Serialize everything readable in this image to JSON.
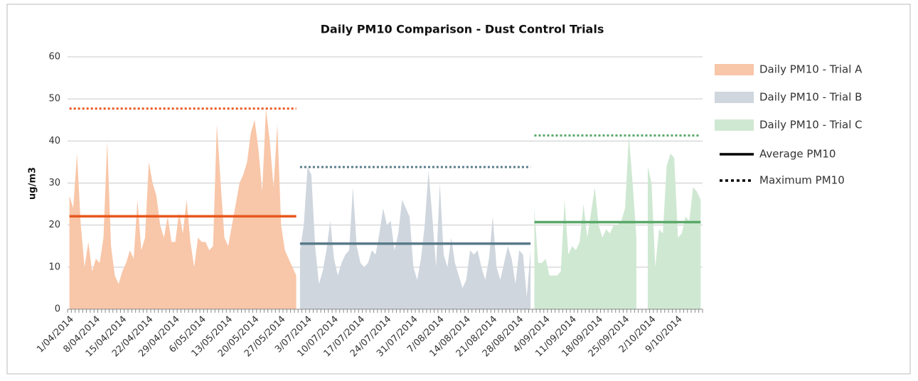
{
  "chart_data": {
    "type": "area",
    "title": "Daily PM10 Comparison - Dust Control Trials",
    "y_label": "ug/m3",
    "categories": [
      "1/04/2014",
      null,
      null,
      null,
      null,
      null,
      null,
      "8/04/2014",
      null,
      null,
      null,
      null,
      null,
      null,
      "15/04/2014",
      null,
      null,
      null,
      null,
      null,
      null,
      "22/04/2014",
      null,
      null,
      null,
      null,
      null,
      null,
      "29/04/2014",
      null,
      null,
      null,
      null,
      null,
      null,
      "6/05/2014",
      null,
      null,
      null,
      null,
      null,
      null,
      "13/05/2014",
      null,
      null,
      null,
      null,
      null,
      null,
      "20/05/2014",
      null,
      null,
      null,
      null,
      null,
      null,
      "27/05/2014",
      null,
      null,
      null,
      null,
      null,
      null,
      "3/07/2014",
      null,
      null,
      null,
      null,
      null,
      null,
      "10/07/2014",
      null,
      null,
      null,
      null,
      null,
      null,
      "17/07/2014",
      null,
      null,
      null,
      null,
      null,
      null,
      "24/07/2014",
      null,
      null,
      null,
      null,
      null,
      null,
      "31/07/2014",
      null,
      null,
      null,
      null,
      null,
      null,
      "7/08/2014",
      null,
      null,
      null,
      null,
      null,
      null,
      "14/08/2014",
      null,
      null,
      null,
      null,
      null,
      null,
      "21/08/2014",
      null,
      null,
      null,
      null,
      null,
      null,
      "28/08/2014",
      null,
      null,
      null,
      null,
      null,
      null,
      "4/09/2014",
      null,
      null,
      null,
      null,
      null,
      null,
      "11/09/2014",
      null,
      null,
      null,
      null,
      null,
      null,
      "18/09/2014",
      null,
      null,
      null,
      null,
      null,
      null,
      "25/09/2014",
      null,
      null,
      null,
      null,
      null,
      null,
      "2/10/2014",
      null,
      null,
      null,
      null,
      null,
      null,
      "9/10/2014",
      null,
      null,
      null,
      null,
      null,
      null
    ],
    "series": [
      {
        "name": "Daily PM10 - Trial A",
        "color": "#f8c6a8",
        "line_color": "#e8581e",
        "average": 22.1,
        "maximum": 47.7,
        "values": [
          27,
          24,
          37,
          20,
          10,
          16,
          9,
          12,
          11,
          17,
          40,
          15,
          8,
          6,
          9,
          11,
          14,
          12,
          26,
          14,
          17,
          35,
          30,
          27,
          20,
          17,
          22,
          16,
          16,
          23,
          18,
          26,
          16,
          10,
          17,
          16,
          16,
          14,
          15,
          44,
          30,
          17,
          15,
          20,
          25,
          30,
          32,
          35,
          42,
          45,
          38,
          28,
          47.7,
          40,
          29,
          44,
          20,
          14,
          12,
          10,
          8,
          null,
          null,
          null,
          null,
          null,
          null,
          null,
          null,
          null,
          null,
          null,
          null,
          null,
          null,
          null,
          null,
          null,
          null,
          null,
          null,
          null,
          null,
          null,
          null,
          null,
          null,
          null,
          null,
          null,
          null,
          null,
          null,
          null,
          null,
          null,
          null,
          null,
          null,
          null,
          null,
          null,
          null,
          null,
          null,
          null,
          null,
          null,
          null,
          null,
          null,
          null,
          null,
          null,
          null,
          null,
          null,
          null,
          null,
          null,
          null,
          null,
          null,
          null,
          null,
          null,
          null,
          null,
          null,
          null,
          null,
          null,
          null,
          null,
          null,
          null,
          null,
          null,
          null,
          null,
          null,
          null,
          null,
          null,
          null,
          null,
          null,
          null,
          null,
          null,
          null,
          null,
          null,
          null,
          null,
          null,
          null,
          null,
          null,
          null,
          null,
          null,
          null,
          null,
          null,
          null,
          null,
          null
        ]
      },
      {
        "name": "Daily PM10 - Trial B",
        "color": "#cfd6de",
        "line_color": "#5a7b8a",
        "average": 15.6,
        "maximum": 33.8,
        "values": [
          null,
          null,
          null,
          null,
          null,
          null,
          null,
          null,
          null,
          null,
          null,
          null,
          null,
          null,
          null,
          null,
          null,
          null,
          null,
          null,
          null,
          null,
          null,
          null,
          null,
          null,
          null,
          null,
          null,
          null,
          null,
          null,
          null,
          null,
          null,
          null,
          null,
          null,
          null,
          null,
          null,
          null,
          null,
          null,
          null,
          null,
          null,
          null,
          null,
          null,
          null,
          null,
          null,
          null,
          null,
          null,
          null,
          null,
          null,
          null,
          null,
          14,
          20,
          33.8,
          32,
          15,
          6,
          9,
          14,
          21,
          12,
          8,
          11,
          13,
          14,
          29,
          15,
          11,
          10,
          11,
          14,
          13,
          18,
          24,
          20,
          21,
          14,
          18,
          26,
          24,
          22,
          10,
          7,
          12,
          20,
          33,
          22,
          10,
          30,
          13,
          10,
          17,
          11,
          8,
          5,
          7,
          14,
          13,
          14,
          10,
          7,
          12,
          22,
          10,
          7,
          11,
          15,
          12,
          6,
          14,
          13,
          3,
          14,
          null,
          null,
          null,
          null,
          null,
          null,
          null,
          null,
          null,
          null,
          null,
          null,
          null,
          null,
          null,
          null,
          null,
          null,
          null,
          null,
          null,
          null,
          null,
          null,
          null,
          null,
          null,
          null,
          null,
          null,
          null,
          null,
          null,
          null,
          null,
          null,
          null,
          null,
          null,
          null,
          null,
          null,
          null,
          null,
          null
        ]
      },
      {
        "name": "Daily PM10 - Trial C",
        "color": "#cfe8d2",
        "line_color": "#5aa86a",
        "average": 20.7,
        "maximum": 41.3,
        "values": [
          null,
          null,
          null,
          null,
          null,
          null,
          null,
          null,
          null,
          null,
          null,
          null,
          null,
          null,
          null,
          null,
          null,
          null,
          null,
          null,
          null,
          null,
          null,
          null,
          null,
          null,
          null,
          null,
          null,
          null,
          null,
          null,
          null,
          null,
          null,
          null,
          null,
          null,
          null,
          null,
          null,
          null,
          null,
          null,
          null,
          null,
          null,
          null,
          null,
          null,
          null,
          null,
          null,
          null,
          null,
          null,
          null,
          null,
          null,
          null,
          null,
          null,
          null,
          null,
          null,
          null,
          null,
          null,
          null,
          null,
          null,
          null,
          null,
          null,
          null,
          null,
          null,
          null,
          null,
          null,
          null,
          null,
          null,
          null,
          null,
          null,
          null,
          null,
          null,
          null,
          null,
          null,
          null,
          null,
          null,
          null,
          null,
          null,
          null,
          null,
          null,
          null,
          null,
          null,
          null,
          null,
          null,
          null,
          null,
          null,
          null,
          null,
          null,
          null,
          null,
          null,
          null,
          null,
          null,
          null,
          null,
          null,
          null,
          24,
          11,
          11,
          12,
          8,
          8,
          8,
          9,
          26,
          13,
          15,
          14,
          16,
          25,
          17,
          23,
          29,
          20,
          17,
          19,
          18,
          20,
          20,
          21,
          24,
          41.3,
          30,
          17,
          null,
          null,
          34,
          30,
          10,
          19,
          18,
          34,
          37,
          36,
          17,
          18,
          22,
          21,
          29,
          28,
          26
        ]
      }
    ],
    "legend_lines": [
      {
        "name": "Average PM10",
        "style": "solid",
        "color": "#000000"
      },
      {
        "name": "Maximum PM10",
        "style": "dotted",
        "color": "#000000"
      }
    ],
    "ylim": [
      0,
      60
    ],
    "yticks": [
      0,
      10,
      20,
      30,
      40,
      50,
      60
    ],
    "grid": true
  }
}
